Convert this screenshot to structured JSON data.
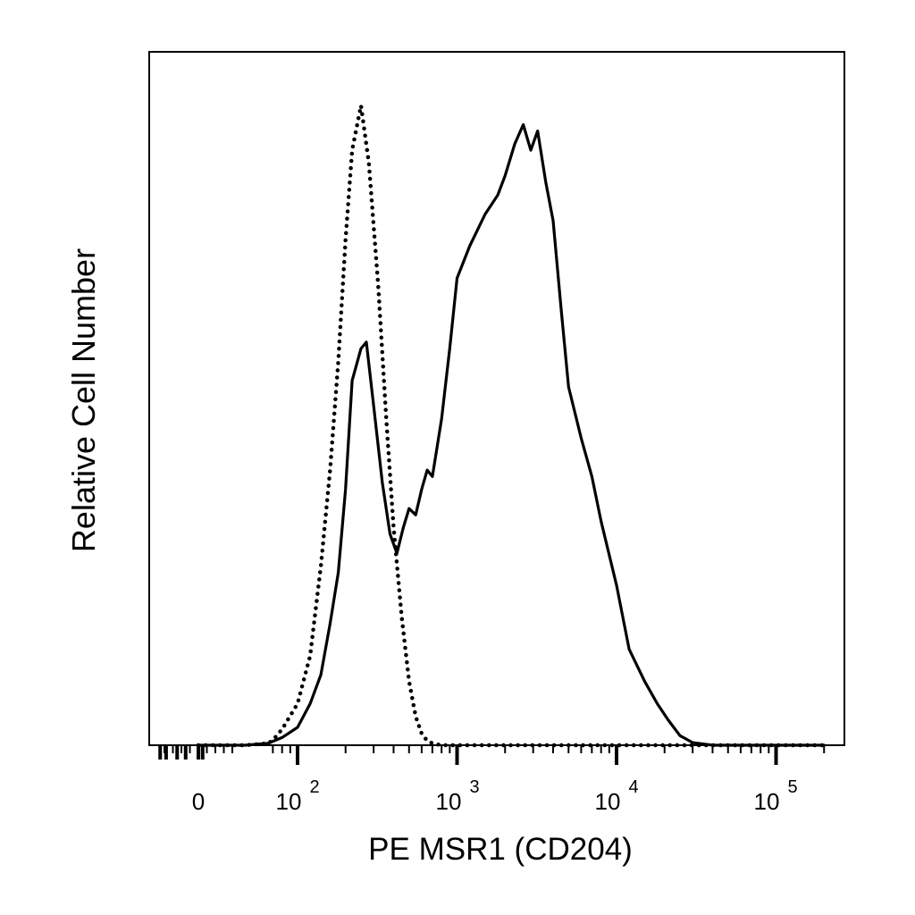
{
  "chart_data": {
    "type": "line",
    "xlabel": "PE MSR1  (CD204)",
    "ylabel": "Relative Cell Number",
    "x_scale": "biexponential",
    "y_scale": "linear",
    "grid": false,
    "legend": "none",
    "x_ticks": [
      {
        "base": "0",
        "exp": ""
      },
      {
        "base": "10",
        "exp": "2"
      },
      {
        "base": "10",
        "exp": "3"
      },
      {
        "base": "10",
        "exp": "4"
      },
      {
        "base": "10",
        "exp": "5"
      }
    ],
    "series": [
      {
        "style": "dotted",
        "color": "#000000",
        "x": [
          0,
          20,
          40,
          60,
          70,
          80,
          100,
          120,
          140,
          160,
          180,
          200,
          220,
          250,
          280,
          320,
          360,
          400,
          450,
          500,
          550,
          600,
          650,
          700,
          800,
          1000,
          2000,
          5000,
          10000,
          50000,
          200000
        ],
        "y": [
          0,
          0,
          0,
          0.003,
          0.008,
          0.025,
          0.065,
          0.14,
          0.28,
          0.43,
          0.6,
          0.79,
          0.93,
          1.0,
          0.91,
          0.72,
          0.51,
          0.34,
          0.2,
          0.1,
          0.045,
          0.018,
          0.007,
          0.003,
          0,
          0,
          0,
          0,
          0,
          0,
          0
        ]
      },
      {
        "style": "solid",
        "color": "#000000",
        "x": [
          0,
          20,
          40,
          60,
          80,
          100,
          120,
          140,
          160,
          180,
          200,
          220,
          250,
          270,
          300,
          340,
          380,
          420,
          460,
          500,
          550,
          600,
          650,
          700,
          800,
          900,
          1000,
          1200,
          1500,
          1800,
          2000,
          2300,
          2600,
          2900,
          3200,
          3600,
          4000,
          4500,
          5000,
          6000,
          7000,
          8000,
          10000,
          12000,
          15000,
          18000,
          21000,
          25000,
          30000,
          40000,
          60000,
          100000,
          200000
        ],
        "y": [
          0,
          0,
          0,
          0.003,
          0.012,
          0.028,
          0.065,
          0.11,
          0.19,
          0.27,
          0.4,
          0.57,
          0.62,
          0.63,
          0.53,
          0.41,
          0.33,
          0.3,
          0.34,
          0.37,
          0.36,
          0.4,
          0.43,
          0.42,
          0.51,
          0.62,
          0.73,
          0.78,
          0.83,
          0.86,
          0.89,
          0.94,
          0.97,
          0.93,
          0.96,
          0.88,
          0.82,
          0.68,
          0.56,
          0.48,
          0.42,
          0.35,
          0.25,
          0.15,
          0.1,
          0.065,
          0.04,
          0.015,
          0.004,
          0,
          0,
          0,
          0
        ]
      }
    ]
  }
}
